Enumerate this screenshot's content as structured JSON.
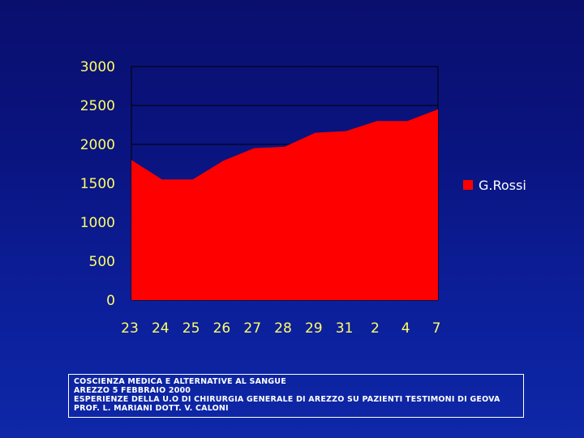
{
  "chart_data": {
    "type": "area",
    "categories": [
      "23",
      "24",
      "25",
      "26",
      "27",
      "28",
      "29",
      "31",
      "2",
      "4",
      "7"
    ],
    "series": [
      {
        "name": "G.Rossi",
        "values": [
          1800,
          1550,
          1550,
          1790,
          1950,
          1970,
          2150,
          2170,
          2300,
          2300,
          2450
        ],
        "color": "#ff0000"
      }
    ],
    "y_ticks": [
      "0",
      "500",
      "1000",
      "1500",
      "2000",
      "2500",
      "3000"
    ],
    "ylim": [
      0,
      3000
    ],
    "grid": true,
    "legend_position": "right"
  },
  "colors": {
    "axis_label": "#ffff66",
    "grid": "#000000",
    "area": "#ff0000"
  },
  "footer": {
    "lines": [
      "Coscienza medica e alternative al sangue",
      "Arezzo 5 febbraio 2000",
      "Esperienze della U.O di Chirurgia Generale di Arezzo su pazienti testimoni di Geova",
      "Prof. L. Mariani  Dott. V. Caloni"
    ]
  }
}
